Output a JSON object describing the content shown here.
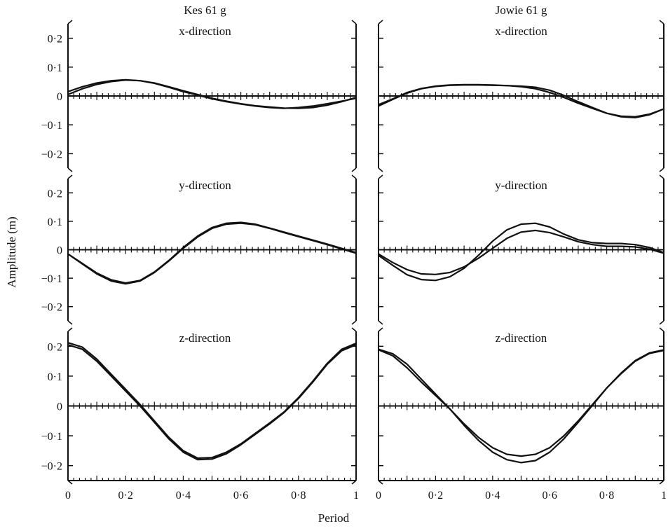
{
  "figure": {
    "xlabel": "Period",
    "ylabel": "Amplitude (m)",
    "columns": [
      "Kes 61 g",
      "Jowie 61 g"
    ],
    "rows": [
      "x-direction",
      "y-direction",
      "z-direction"
    ]
  },
  "chart_data": [
    {
      "type": "line",
      "panel_title": "Kes 61 g",
      "direction": "x-direction",
      "xlim": [
        0,
        1
      ],
      "ylim": [
        -0.25,
        0.25
      ],
      "yticks": [
        "0·2",
        "0·1",
        "0",
        "−0·1",
        "−0·2"
      ],
      "x": [
        0,
        0.05,
        0.1,
        0.15,
        0.2,
        0.25,
        0.3,
        0.35,
        0.4,
        0.45,
        0.5,
        0.55,
        0.6,
        0.65,
        0.7,
        0.75,
        0.8,
        0.85,
        0.9,
        0.95,
        1
      ],
      "series": [
        {
          "values": [
            0.005,
            0.025,
            0.04,
            0.05,
            0.055,
            0.053,
            0.045,
            0.032,
            0.018,
            0.005,
            -0.008,
            -0.018,
            -0.027,
            -0.034,
            -0.038,
            -0.042,
            -0.043,
            -0.04,
            -0.032,
            -0.02,
            -0.005
          ]
        },
        {
          "values": [
            0.015,
            0.032,
            0.045,
            0.053,
            0.056,
            0.053,
            0.044,
            0.03,
            0.015,
            0.003,
            -0.01,
            -0.02,
            -0.028,
            -0.035,
            -0.04,
            -0.043,
            -0.04,
            -0.035,
            -0.027,
            -0.018,
            -0.008
          ]
        }
      ]
    },
    {
      "type": "line",
      "panel_title": "Jowie 61 g",
      "direction": "x-direction",
      "xlim": [
        0,
        1
      ],
      "ylim": [
        -0.25,
        0.25
      ],
      "yticks": [],
      "x": [
        0,
        0.05,
        0.1,
        0.15,
        0.2,
        0.25,
        0.3,
        0.35,
        0.4,
        0.45,
        0.5,
        0.55,
        0.6,
        0.65,
        0.7,
        0.75,
        0.8,
        0.85,
        0.9,
        0.95,
        1
      ],
      "series": [
        {
          "values": [
            -0.035,
            -0.012,
            0.01,
            0.025,
            0.033,
            0.037,
            0.038,
            0.038,
            0.037,
            0.036,
            0.034,
            0.03,
            0.02,
            0.002,
            -0.02,
            -0.04,
            -0.06,
            -0.072,
            -0.075,
            -0.065,
            -0.045
          ]
        },
        {
          "values": [
            -0.03,
            -0.01,
            0.012,
            0.026,
            0.034,
            0.038,
            0.039,
            0.039,
            0.038,
            0.036,
            0.032,
            0.025,
            0.012,
            -0.005,
            -0.025,
            -0.043,
            -0.06,
            -0.07,
            -0.072,
            -0.063,
            -0.045
          ]
        }
      ]
    },
    {
      "type": "line",
      "panel_title": "",
      "direction": "y-direction",
      "xlim": [
        0,
        1
      ],
      "ylim": [
        -0.25,
        0.25
      ],
      "yticks": [
        "0·2",
        "0·1",
        "0",
        "−0·1",
        "−0·2"
      ],
      "x": [
        0,
        0.05,
        0.1,
        0.15,
        0.2,
        0.25,
        0.3,
        0.35,
        0.4,
        0.45,
        0.5,
        0.55,
        0.6,
        0.65,
        0.7,
        0.75,
        0.8,
        0.85,
        0.9,
        0.95,
        1
      ],
      "series": [
        {
          "values": [
            -0.015,
            -0.05,
            -0.085,
            -0.11,
            -0.12,
            -0.11,
            -0.08,
            -0.04,
            0.005,
            0.045,
            0.075,
            0.09,
            0.093,
            0.088,
            0.075,
            0.06,
            0.046,
            0.032,
            0.018,
            0.003,
            -0.012
          ]
        },
        {
          "values": [
            -0.015,
            -0.048,
            -0.082,
            -0.106,
            -0.117,
            -0.108,
            -0.078,
            -0.038,
            0.008,
            0.048,
            0.078,
            0.093,
            0.096,
            0.09,
            0.076,
            0.062,
            0.048,
            0.034,
            0.02,
            0.005,
            -0.01
          ]
        }
      ]
    },
    {
      "type": "line",
      "panel_title": "",
      "direction": "y-direction",
      "xlim": [
        0,
        1
      ],
      "ylim": [
        -0.25,
        0.25
      ],
      "yticks": [],
      "x": [
        0,
        0.05,
        0.1,
        0.15,
        0.2,
        0.25,
        0.3,
        0.35,
        0.4,
        0.45,
        0.5,
        0.55,
        0.6,
        0.65,
        0.7,
        0.75,
        0.8,
        0.85,
        0.9,
        0.95,
        1
      ],
      "series": [
        {
          "values": [
            -0.015,
            -0.045,
            -0.07,
            -0.085,
            -0.087,
            -0.08,
            -0.06,
            -0.03,
            0.005,
            0.04,
            0.062,
            0.068,
            0.06,
            0.045,
            0.028,
            0.018,
            0.012,
            0.012,
            0.01,
            0.002,
            -0.012
          ]
        },
        {
          "values": [
            -0.02,
            -0.055,
            -0.088,
            -0.105,
            -0.108,
            -0.095,
            -0.065,
            -0.02,
            0.03,
            0.07,
            0.09,
            0.093,
            0.08,
            0.055,
            0.035,
            0.025,
            0.022,
            0.022,
            0.018,
            0.008,
            -0.01
          ]
        }
      ]
    },
    {
      "type": "line",
      "panel_title": "",
      "direction": "z-direction",
      "xlim": [
        0,
        1
      ],
      "ylim": [
        -0.25,
        0.25
      ],
      "yticks": [
        "0·2",
        "0·1",
        "0",
        "−0·1",
        "−0·2"
      ],
      "x": [
        0,
        0.05,
        0.1,
        0.15,
        0.2,
        0.25,
        0.3,
        0.35,
        0.4,
        0.45,
        0.5,
        0.55,
        0.6,
        0.65,
        0.7,
        0.75,
        0.8,
        0.85,
        0.9,
        0.95,
        1
      ],
      "series": [
        {
          "values": [
            0.205,
            0.19,
            0.15,
            0.1,
            0.05,
            0,
            -0.055,
            -0.11,
            -0.155,
            -0.18,
            -0.178,
            -0.16,
            -0.13,
            -0.095,
            -0.06,
            -0.022,
            0.025,
            0.08,
            0.14,
            0.185,
            0.205
          ]
        },
        {
          "values": [
            0.212,
            0.197,
            0.157,
            0.106,
            0.056,
            0.005,
            -0.05,
            -0.105,
            -0.15,
            -0.175,
            -0.173,
            -0.155,
            -0.127,
            -0.092,
            -0.057,
            -0.02,
            0.028,
            0.083,
            0.143,
            0.19,
            0.21
          ]
        }
      ]
    },
    {
      "type": "line",
      "panel_title": "",
      "direction": "z-direction",
      "xlim": [
        0,
        1
      ],
      "ylim": [
        -0.25,
        0.25
      ],
      "yticks": [],
      "x": [
        0,
        0.05,
        0.1,
        0.15,
        0.2,
        0.25,
        0.3,
        0.35,
        0.4,
        0.45,
        0.5,
        0.55,
        0.6,
        0.65,
        0.7,
        0.75,
        0.8,
        0.85,
        0.9,
        0.95,
        1
      ],
      "series": [
        {
          "values": [
            0.19,
            0.175,
            0.14,
            0.09,
            0.04,
            -0.01,
            -0.065,
            -0.115,
            -0.155,
            -0.18,
            -0.19,
            -0.183,
            -0.155,
            -0.11,
            -0.055,
            0.002,
            0.06,
            0.11,
            0.152,
            0.178,
            0.188
          ]
        },
        {
          "values": [
            0.188,
            0.168,
            0.128,
            0.08,
            0.035,
            -0.01,
            -0.06,
            -0.105,
            -0.14,
            -0.162,
            -0.168,
            -0.162,
            -0.14,
            -0.1,
            -0.05,
            0.005,
            0.06,
            0.108,
            0.15,
            0.176,
            0.186
          ]
        }
      ]
    }
  ]
}
